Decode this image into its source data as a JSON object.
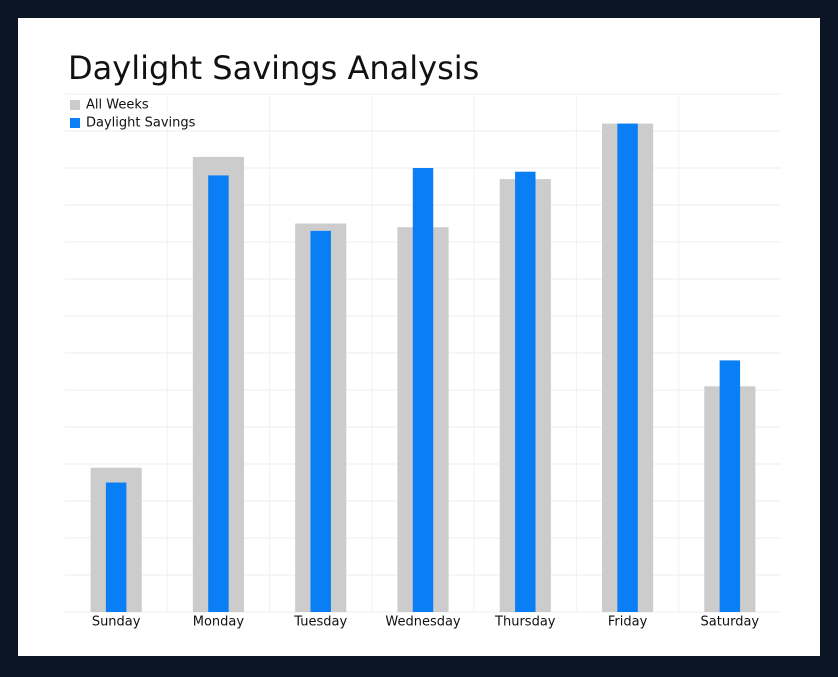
{
  "chart_data": {
    "type": "bar",
    "title": "Daylight Savings Analysis",
    "categories": [
      "Sunday",
      "Monday",
      "Tuesday",
      "Wednesday",
      "Thursday",
      "Friday",
      "Saturday"
    ],
    "series": [
      {
        "name": "All Weeks",
        "color": "#cccccc",
        "values": [
          3.9,
          12.3,
          10.5,
          10.4,
          11.7,
          13.2,
          6.1
        ]
      },
      {
        "name": "Daylight Savings",
        "color": "#0a7ff5",
        "values": [
          3.5,
          11.8,
          10.3,
          12.0,
          11.9,
          13.2,
          6.8
        ]
      }
    ],
    "ylim": [
      0,
      14
    ],
    "yticks": [
      0,
      1,
      2,
      3,
      4,
      5,
      6,
      7,
      8,
      9,
      10,
      11,
      12,
      13,
      14
    ],
    "grid": true,
    "legend": "top-left"
  }
}
